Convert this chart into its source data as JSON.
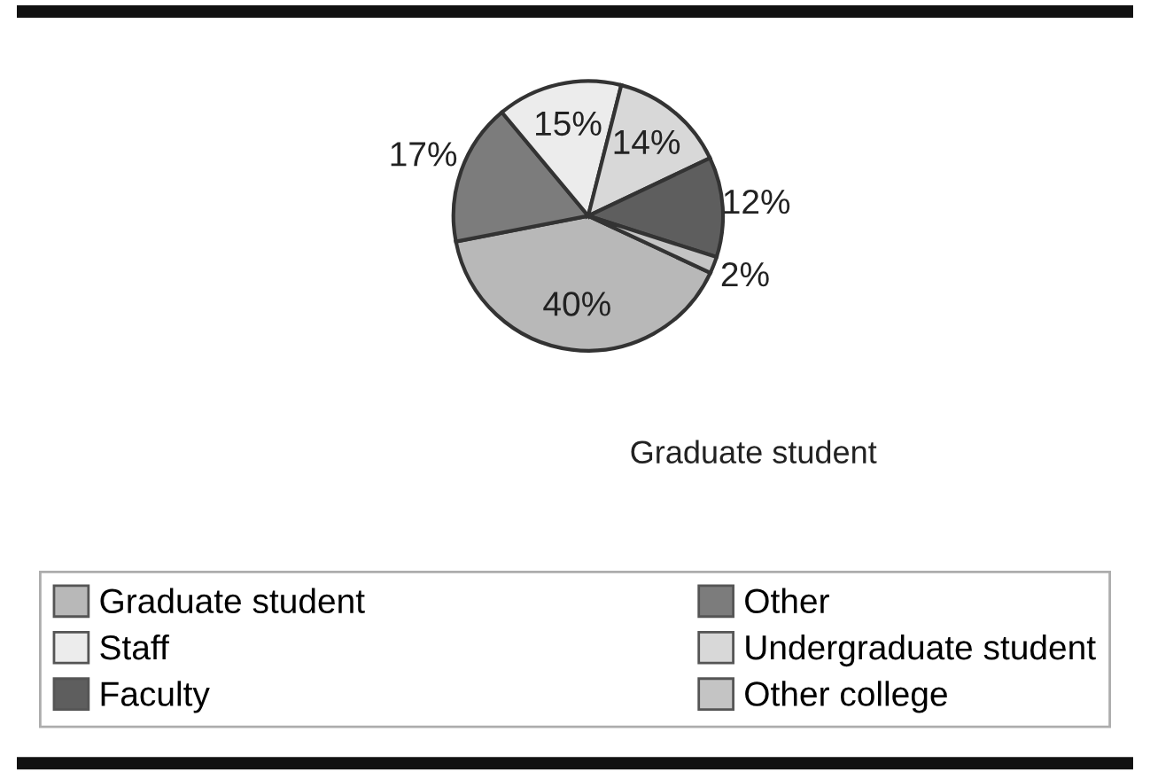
{
  "chart_data": {
    "type": "pie",
    "categories": [
      "Graduate student",
      "Other",
      "Staff",
      "Undergraduate student",
      "Faculty",
      "Other college"
    ],
    "values": [
      40,
      17,
      15,
      14,
      12,
      2
    ],
    "colors": [
      "#b8b8b8",
      "#7c7c7c",
      "#ececec",
      "#d8d8d8",
      "#5e5e5e",
      "#c4c4c4"
    ],
    "value_labels": [
      "40%",
      "17%",
      "15%",
      "14%",
      "12%",
      "2%"
    ],
    "annotations": [
      "Graduate student"
    ],
    "legend": "bottom"
  }
}
